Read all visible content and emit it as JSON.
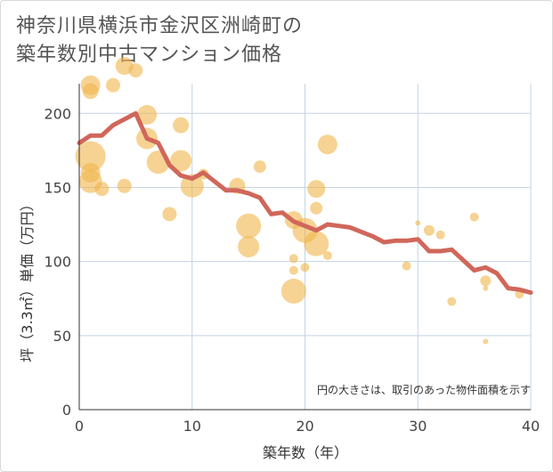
{
  "title_line1": "神奈川県横浜市金沢区洲崎町の",
  "title_line2": "築年数別中古マンション価格",
  "chart_data": {
    "type": "scatter",
    "title": "神奈川県横浜市金沢区洲崎町の築年数別中古マンション価格",
    "xlabel": "築年数（年）",
    "ylabel": "坪（3.3㎡）単価（万円）",
    "xlim": [
      0,
      40
    ],
    "ylim": [
      0,
      220
    ],
    "xticks": [
      0,
      10,
      20,
      30,
      40
    ],
    "yticks": [
      0,
      50,
      100,
      150,
      200
    ],
    "grid": true,
    "note": "円の大きさは、取引のあった物件面積を示す",
    "colors": {
      "bubble": "#f0b64b",
      "line": "#d0675a",
      "grid": "#c5d3e2"
    },
    "bubbles": [
      {
        "x": 1,
        "y": 219,
        "r": 11
      },
      {
        "x": 1,
        "y": 215,
        "r": 9
      },
      {
        "x": 3,
        "y": 219,
        "r": 8
      },
      {
        "x": 4,
        "y": 232,
        "r": 10
      },
      {
        "x": 5,
        "y": 229,
        "r": 8
      },
      {
        "x": 6,
        "y": 199,
        "r": 11
      },
      {
        "x": 6,
        "y": 183,
        "r": 12
      },
      {
        "x": 1,
        "y": 171,
        "r": 17
      },
      {
        "x": 7,
        "y": 167,
        "r": 13
      },
      {
        "x": 9,
        "y": 192,
        "r": 9
      },
      {
        "x": 9,
        "y": 168,
        "r": 12
      },
      {
        "x": 1,
        "y": 160,
        "r": 11
      },
      {
        "x": 1,
        "y": 154,
        "r": 13
      },
      {
        "x": 2,
        "y": 149,
        "r": 8
      },
      {
        "x": 4,
        "y": 151,
        "r": 8
      },
      {
        "x": 10,
        "y": 151,
        "r": 13
      },
      {
        "x": 11,
        "y": 159,
        "r": 6
      },
      {
        "x": 8,
        "y": 132,
        "r": 8
      },
      {
        "x": 14,
        "y": 151,
        "r": 9
      },
      {
        "x": 16,
        "y": 164,
        "r": 7
      },
      {
        "x": 15,
        "y": 124,
        "r": 14
      },
      {
        "x": 15,
        "y": 110,
        "r": 12
      },
      {
        "x": 19,
        "y": 128,
        "r": 10
      },
      {
        "x": 20,
        "y": 121,
        "r": 14
      },
      {
        "x": 21,
        "y": 112,
        "r": 14
      },
      {
        "x": 21,
        "y": 149,
        "r": 10
      },
      {
        "x": 21,
        "y": 136,
        "r": 7
      },
      {
        "x": 22,
        "y": 179,
        "r": 11
      },
      {
        "x": 22,
        "y": 104,
        "r": 5
      },
      {
        "x": 19,
        "y": 102,
        "r": 5
      },
      {
        "x": 19,
        "y": 94,
        "r": 5
      },
      {
        "x": 20,
        "y": 96,
        "r": 5
      },
      {
        "x": 19,
        "y": 80,
        "r": 14
      },
      {
        "x": 29,
        "y": 97,
        "r": 5
      },
      {
        "x": 30,
        "y": 126,
        "r": 3
      },
      {
        "x": 31,
        "y": 121,
        "r": 6
      },
      {
        "x": 32,
        "y": 118,
        "r": 5
      },
      {
        "x": 33,
        "y": 73,
        "r": 5
      },
      {
        "x": 35,
        "y": 130,
        "r": 5
      },
      {
        "x": 36,
        "y": 87,
        "r": 6
      },
      {
        "x": 36,
        "y": 82,
        "r": 3
      },
      {
        "x": 36,
        "y": 46,
        "r": 3
      },
      {
        "x": 39,
        "y": 78,
        "r": 5
      }
    ],
    "line": {
      "x": [
        0,
        1,
        2,
        3,
        4,
        5,
        6,
        7,
        8,
        9,
        10,
        11,
        12,
        13,
        14,
        15,
        16,
        17,
        18,
        19,
        20,
        21,
        22,
        23,
        24,
        25,
        26,
        27,
        28,
        29,
        30,
        31,
        32,
        33,
        34,
        35,
        36,
        37,
        38,
        39,
        40
      ],
      "y": [
        180,
        185,
        185,
        192,
        196,
        200,
        183,
        180,
        165,
        158,
        156,
        160,
        154,
        148,
        148,
        146,
        143,
        132,
        133,
        127,
        124,
        121,
        125,
        124,
        123,
        120,
        117,
        113,
        114,
        114,
        115,
        107,
        107,
        108,
        101,
        94,
        96,
        92,
        82,
        81,
        79
      ]
    }
  }
}
